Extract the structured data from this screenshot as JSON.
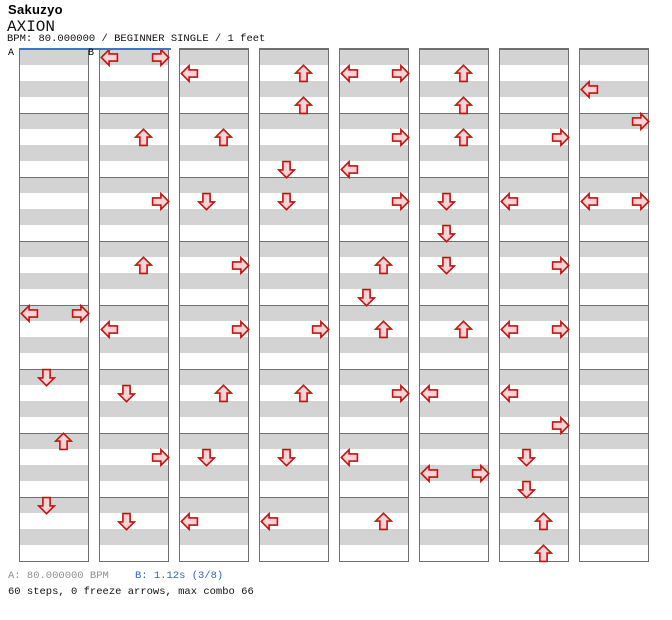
{
  "header": {
    "artist": "Sakuzyo",
    "title": "AXION",
    "subtitle": "BPM: 80.000000 / BEGINNER SINGLE / 1 feet"
  },
  "footer": {
    "marker_a": "A: 80.000000 BPM",
    "marker_b": "B: 1.12s (3/8)",
    "stats": "60 steps, 0 freeze arrows, max combo 66"
  },
  "colors": {
    "arrow_fill": "#f8d5d5",
    "arrow_stroke": "#c41111",
    "stripe_gray": "#d3d3d3",
    "stripe_white": "#ffffff",
    "border_gray": "#707070",
    "marker_blue": "#3a76c9",
    "footer_gray": "#8f8f8f",
    "footer_blue": "#2e64c8"
  },
  "chart_data": {
    "type": "step-chart",
    "lanes": [
      "left",
      "down",
      "up",
      "right"
    ],
    "rows_per_column": 32,
    "rows_per_measure": 4,
    "total_steps": 60,
    "freeze_arrows": 0,
    "max_combo": 66,
    "markers": [
      {
        "label": "A",
        "column": 0
      },
      {
        "label": "B",
        "column": 1
      }
    ],
    "columns": [
      {
        "steps": [
          {
            "row": 16,
            "dir": "left"
          },
          {
            "row": 16,
            "dir": "right"
          },
          {
            "row": 20,
            "dir": "down"
          },
          {
            "row": 24,
            "dir": "up"
          },
          {
            "row": 28,
            "dir": "down"
          }
        ]
      },
      {
        "steps": [
          {
            "row": 0,
            "dir": "left"
          },
          {
            "row": 0,
            "dir": "right"
          },
          {
            "row": 5,
            "dir": "up"
          },
          {
            "row": 9,
            "dir": "right"
          },
          {
            "row": 13,
            "dir": "up"
          },
          {
            "row": 17,
            "dir": "left"
          },
          {
            "row": 21,
            "dir": "down"
          },
          {
            "row": 25,
            "dir": "right"
          },
          {
            "row": 29,
            "dir": "down"
          }
        ]
      },
      {
        "steps": [
          {
            "row": 1,
            "dir": "left"
          },
          {
            "row": 5,
            "dir": "up"
          },
          {
            "row": 9,
            "dir": "down"
          },
          {
            "row": 13,
            "dir": "right"
          },
          {
            "row": 17,
            "dir": "right"
          },
          {
            "row": 21,
            "dir": "up"
          },
          {
            "row": 25,
            "dir": "down"
          },
          {
            "row": 29,
            "dir": "left"
          }
        ]
      },
      {
        "steps": [
          {
            "row": 1,
            "dir": "up"
          },
          {
            "row": 3,
            "dir": "up"
          },
          {
            "row": 7,
            "dir": "down"
          },
          {
            "row": 9,
            "dir": "down"
          },
          {
            "row": 17,
            "dir": "right"
          },
          {
            "row": 21,
            "dir": "up"
          },
          {
            "row": 25,
            "dir": "down"
          },
          {
            "row": 29,
            "dir": "left"
          }
        ]
      },
      {
        "steps": [
          {
            "row": 1,
            "dir": "left"
          },
          {
            "row": 1,
            "dir": "right"
          },
          {
            "row": 5,
            "dir": "right"
          },
          {
            "row": 7,
            "dir": "left"
          },
          {
            "row": 9,
            "dir": "right"
          },
          {
            "row": 13,
            "dir": "up"
          },
          {
            "row": 15,
            "dir": "down"
          },
          {
            "row": 17,
            "dir": "up"
          },
          {
            "row": 21,
            "dir": "right"
          },
          {
            "row": 25,
            "dir": "left"
          },
          {
            "row": 29,
            "dir": "up"
          }
        ]
      },
      {
        "steps": [
          {
            "row": 1,
            "dir": "up"
          },
          {
            "row": 3,
            "dir": "up"
          },
          {
            "row": 5,
            "dir": "up"
          },
          {
            "row": 9,
            "dir": "down"
          },
          {
            "row": 11,
            "dir": "down"
          },
          {
            "row": 13,
            "dir": "down"
          },
          {
            "row": 17,
            "dir": "up"
          },
          {
            "row": 21,
            "dir": "left"
          },
          {
            "row": 26,
            "dir": "left"
          },
          {
            "row": 26,
            "dir": "right"
          }
        ]
      },
      {
        "steps": [
          {
            "row": 5,
            "dir": "right"
          },
          {
            "row": 9,
            "dir": "left"
          },
          {
            "row": 13,
            "dir": "right"
          },
          {
            "row": 17,
            "dir": "left"
          },
          {
            "row": 17,
            "dir": "right"
          },
          {
            "row": 21,
            "dir": "left"
          },
          {
            "row": 23,
            "dir": "right"
          },
          {
            "row": 25,
            "dir": "down"
          },
          {
            "row": 27,
            "dir": "down"
          },
          {
            "row": 29,
            "dir": "up"
          },
          {
            "row": 31,
            "dir": "up"
          }
        ]
      },
      {
        "steps": [
          {
            "row": 2,
            "dir": "left"
          },
          {
            "row": 4,
            "dir": "right"
          },
          {
            "row": 9,
            "dir": "left"
          },
          {
            "row": 9,
            "dir": "right"
          }
        ]
      }
    ]
  }
}
